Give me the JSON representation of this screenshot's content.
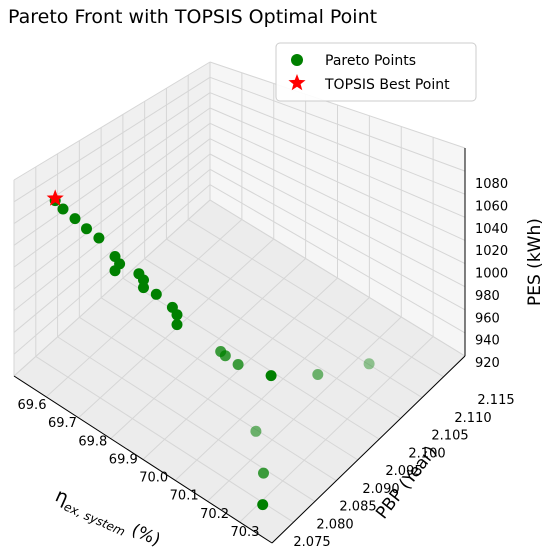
{
  "chart_data": {
    "type": "scatter",
    "title": "Pareto Front with TOPSIS Optimal Point",
    "x_axis": {
      "label_main": "η",
      "label_sub": "ex, system",
      "label_unit": "(%)",
      "ticks": [
        "69.6",
        "69.7",
        "69.8",
        "69.9",
        "70.0",
        "70.1",
        "70.2",
        "70.3"
      ]
    },
    "y_axis": {
      "label": "PBP (Year)",
      "ticks": [
        "2.075",
        "2.080",
        "2.085",
        "2.090",
        "2.095",
        "2.100",
        "2.105",
        "2.110",
        "2.115"
      ]
    },
    "z_axis": {
      "label": "PES (kWh)",
      "ticks": [
        "920",
        "940",
        "960",
        "980",
        "1000",
        "1020",
        "1040",
        "1060",
        "1080"
      ]
    },
    "legend": {
      "position": "top-right",
      "entries": [
        "Pareto Points",
        "TOPSIS Best Point"
      ]
    },
    "colors": {
      "pareto": "#008000",
      "topsis": "#ff0000"
    },
    "series": [
      {
        "name": "Pareto Points",
        "marker": "circle",
        "points": [
          {
            "x": 69.6,
            "y": 2.08,
            "z": 1060,
            "depth": 0
          },
          {
            "x": 69.62,
            "y": 2.0803,
            "z": 1055,
            "depth": 0
          },
          {
            "x": 69.65,
            "y": 2.0808,
            "z": 1050,
            "depth": 0
          },
          {
            "x": 69.68,
            "y": 2.0812,
            "z": 1045,
            "depth": 0
          },
          {
            "x": 69.71,
            "y": 2.0818,
            "z": 1040,
            "depth": 0
          },
          {
            "x": 69.75,
            "y": 2.0825,
            "z": 1028,
            "depth": 0
          },
          {
            "x": 69.76,
            "y": 2.0828,
            "z": 1022,
            "depth": 0
          },
          {
            "x": 69.75,
            "y": 2.0825,
            "z": 1015,
            "depth": 0
          },
          {
            "x": 69.81,
            "y": 2.0835,
            "z": 1020,
            "depth": 0
          },
          {
            "x": 69.82,
            "y": 2.0838,
            "z": 1015,
            "depth": 0
          },
          {
            "x": 69.82,
            "y": 2.0838,
            "z": 1008,
            "depth": 0
          },
          {
            "x": 69.85,
            "y": 2.0845,
            "z": 1005,
            "depth": 0
          },
          {
            "x": 69.89,
            "y": 2.0852,
            "z": 998,
            "depth": 0
          },
          {
            "x": 69.9,
            "y": 2.0855,
            "z": 992,
            "depth": 0
          },
          {
            "x": 69.9,
            "y": 2.0855,
            "z": 983,
            "depth": 0
          },
          {
            "x": 70.0,
            "y": 2.088,
            "z": 968,
            "depth": 1
          },
          {
            "x": 70.01,
            "y": 2.0883,
            "z": 965,
            "depth": 1
          },
          {
            "x": 70.04,
            "y": 2.089,
            "z": 960,
            "depth": 1
          },
          {
            "x": 70.1,
            "y": 2.092,
            "z": 950,
            "depth": 0
          },
          {
            "x": 70.16,
            "y": 2.098,
            "z": 940,
            "depth": 2
          },
          {
            "x": 70.22,
            "y": 2.105,
            "z": 935,
            "depth": 3
          },
          {
            "x": 70.3,
            "y": 2.076,
            "z": 930,
            "depth": 0
          },
          {
            "x": 70.26,
            "y": 2.079,
            "z": 940,
            "depth": 1
          },
          {
            "x": 70.18,
            "y": 2.083,
            "z": 948,
            "depth": 2
          }
        ]
      },
      {
        "name": "TOPSIS Best Point",
        "marker": "star",
        "points": [
          {
            "x": 69.6,
            "y": 2.08,
            "z": 1062
          }
        ]
      }
    ]
  }
}
